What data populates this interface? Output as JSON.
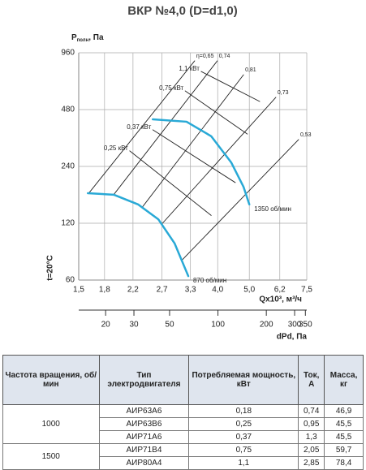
{
  "chart_data": {
    "type": "line",
    "title": "ВКР №4,0 (D=d1,0)",
    "ylabel": {
      "main": "P",
      "sub": "полн",
      "unit": ", Па"
    },
    "side_label": "t=20°C",
    "xlabel": "Qx10³, м³/ч",
    "x2label": "dPd, Па",
    "log": true,
    "grid": true,
    "xlim": [
      1.5,
      7.5
    ],
    "ylim": [
      60,
      960
    ],
    "x2lim": [
      13.6,
      357
    ],
    "xticks": [
      {
        "value": 1.5,
        "label": "1,5"
      },
      {
        "value": 1.8,
        "label": "1,8"
      },
      {
        "value": 2.2,
        "label": "2,2"
      },
      {
        "value": 2.7,
        "label": "2,7"
      },
      {
        "value": 3.3,
        "label": "3,3"
      },
      {
        "value": 4.0,
        "label": "4,0"
      },
      {
        "value": 5.0,
        "label": "5,0"
      },
      {
        "value": 6.2,
        "label": "6,2"
      },
      {
        "value": 7.5,
        "label": "7,5"
      }
    ],
    "yticks": [
      60,
      120,
      240,
      480,
      960
    ],
    "x2ticks": [
      20,
      30,
      50,
      100,
      200,
      300,
      350
    ],
    "series": [
      {
        "name": "1350 об/мин",
        "color": "#29a9d6",
        "x": [
          2.53,
          3.21,
          3.82,
          4.4,
          4.8,
          5.0
        ],
        "values": [
          426,
          414,
          347,
          252,
          187,
          151
        ]
      },
      {
        "name": "870 об/мин",
        "color": "#29a9d6",
        "x": [
          1.6,
          1.92,
          2.28,
          2.63,
          2.95,
          3.25
        ],
        "values": [
          173,
          170,
          151,
          126,
          94,
          63
        ]
      }
    ],
    "power_lines": [
      {
        "name": "1,1 кВт",
        "x": [
          3.56,
          5.38
        ],
        "values": [
          764,
          530
        ]
      },
      {
        "name": "0,75 кВт",
        "x": [
          3.18,
          4.93
        ],
        "values": [
          603,
          356
        ]
      },
      {
        "name": "0,37 кВт",
        "x": [
          2.53,
          4.53
        ],
        "values": [
          375,
          197
        ]
      },
      {
        "name": "0,25 кВт",
        "x": [
          2.15,
          3.82
        ],
        "values": [
          290,
          132
        ]
      }
    ],
    "efficiency_lines": [
      {
        "name": "η=0,65",
        "x": [
          1.61,
          3.4
        ],
        "values": [
          173,
          870
        ]
      },
      {
        "name": "0,74",
        "x": [
          1.92,
          3.99
        ],
        "values": [
          170,
          870
        ]
      },
      {
        "name": "0,81",
        "x": [
          2.35,
          4.8
        ],
        "values": [
          146,
          734
        ]
      },
      {
        "name": "0,73",
        "x": [
          2.71,
          6.03
        ],
        "values": [
          120,
          557
        ]
      },
      {
        "name": "0,53",
        "x": [
          3.12,
          7.08
        ],
        "values": [
          77,
          333
        ]
      }
    ]
  },
  "table": {
    "headers": [
      "Частота вращения, об/мин",
      "Тип электродвигателя",
      "Потребляемая мощность, кВт",
      "Ток, А",
      "Масса, кг"
    ],
    "groups": [
      {
        "speed": "1000",
        "rows": [
          [
            "АИР63А6",
            "0,18",
            "0,74",
            "46,9"
          ],
          [
            "АИР63В6",
            "0,25",
            "0,95",
            "45,5"
          ],
          [
            "АИР71А6",
            "0,37",
            "1,3",
            "45,5"
          ]
        ]
      },
      {
        "speed": "1500",
        "rows": [
          [
            "АИР71В4",
            "0,75",
            "2,05",
            "59,7"
          ],
          [
            "АИР80А4",
            "1,1",
            "2,85",
            "78,4"
          ]
        ]
      }
    ]
  }
}
